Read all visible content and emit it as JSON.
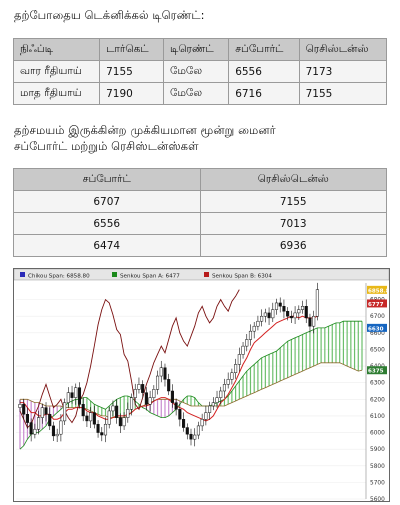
{
  "heading1": "தற்போதைய டெக்னிக்கல் டிரெண்ட்:",
  "table1": {
    "headers": [
      "நிஃப்டி",
      "டார்கெட்",
      "டிரெண்ட்",
      "சப்போர்ட்",
      "ரெசிஸ்டன்ஸ்"
    ],
    "rows": [
      [
        "வார ரீதியாய்",
        "7155",
        "மேலே",
        "6556",
        "7173"
      ],
      [
        "மாத ரீதியாய்",
        "7190",
        "மேலே",
        "6716",
        "7155"
      ]
    ]
  },
  "heading2_line1": "தற்சமயம் இருக்கின்ற முக்கியமான மூன்று மைனர்",
  "heading2_line2": "சப்போர்ட் மற்றும் ரெசிஸ்டன்ஸ்கள்",
  "table2": {
    "headers": [
      "சப்போர்ட்",
      "ரெசிஸ்டென்ஸ்"
    ],
    "rows": [
      [
        "6707",
        "7155"
      ],
      [
        "6556",
        "7013"
      ],
      [
        "6474",
        "6936"
      ]
    ]
  },
  "chart_data": {
    "type": "ichimoku",
    "legend": [
      {
        "name": "Chikou Span",
        "value": "6858.80",
        "color": "#2b2bb8"
      },
      {
        "name": "Senkou Span A",
        "value": "6477",
        "color": "#1c8a1c"
      },
      {
        "name": "Senkou Span B",
        "value": "6304",
        "color": "#b81c1c"
      }
    ],
    "ylim": [
      5600,
      6900
    ],
    "y_ticks": [
      5600,
      5700,
      5800,
      5900,
      6000,
      6100,
      6200,
      6300,
      6400,
      6500,
      6600,
      6700,
      6800
    ],
    "price_labels": [
      {
        "text": "6858.80",
        "value": 6858.8,
        "color": "#e8b818"
      },
      {
        "text": "6777",
        "value": 6777,
        "color": "#c62828"
      },
      {
        "text": "6630",
        "value": 6630,
        "color": "#1565c0"
      },
      {
        "text": "6375",
        "value": 6375,
        "color": "#2e7d32"
      }
    ],
    "close": [
      6170,
      6110,
      6060,
      5990,
      6020,
      6090,
      6150,
      6110,
      6040,
      5980,
      5990,
      6070,
      6180,
      6240,
      6210,
      6270,
      6170,
      6100,
      6070,
      6120,
      6050,
      6000,
      5985,
      6050,
      6130,
      6160,
      6090,
      6040,
      6090,
      6140,
      6210,
      6260,
      6290,
      6240,
      6170,
      6210,
      6260,
      6340,
      6390,
      6320,
      6250,
      6180,
      6140,
      6080,
      6030,
      5990,
      5960,
      5985,
      6040,
      6080,
      6120,
      6160,
      6180,
      6210,
      6250,
      6290,
      6320,
      6360,
      6410,
      6470,
      6520,
      6560,
      6610,
      6640,
      6670,
      6700,
      6720,
      6690,
      6740,
      6780,
      6760,
      6730,
      6700,
      6690,
      6720,
      6740,
      6760,
      6690,
      6640,
      6700,
      6860
    ],
    "kijun": [
      6180,
      6180,
      6150,
      6120,
      6120,
      6100,
      6100,
      6110,
      6110,
      6080,
      6080,
      6090,
      6120,
      6140,
      6140,
      6150,
      6150,
      6150,
      6130,
      6120,
      6120,
      6100,
      6090,
      6080,
      6080,
      6090,
      6100,
      6100,
      6100,
      6110,
      6120,
      6140,
      6150,
      6160,
      6160,
      6170,
      6190,
      6200,
      6210,
      6210,
      6200,
      6180,
      6160,
      6150,
      6140,
      6120,
      6110,
      6100,
      6090,
      6080,
      6070,
      6080,
      6100,
      6140,
      6180,
      6200,
      6230,
      6270,
      6310,
      6360,
      6410,
      6450,
      6500,
      6540,
      6560,
      6580,
      6600,
      6620,
      6640,
      6660,
      6670,
      6680,
      6690,
      6700,
      6700,
      6690,
      6700,
      6690,
      6690,
      6690,
      6700
    ],
    "chikou": [
      6130,
      6080,
      6030,
      6050,
      6110,
      6160,
      6230,
      6290,
      6220,
      6150,
      6170,
      6200,
      6130,
      6090,
      6060,
      6100,
      6190,
      6230,
      6300,
      6400,
      6520,
      6650,
      6740,
      6800,
      6780,
      6710,
      6620,
      6590,
      6470,
      6430,
      6310,
      6170,
      6140,
      6210,
      6290,
      6350,
      6420,
      6470,
      6520,
      6480,
      6560,
      6640,
      6690,
      6600,
      6550,
      6520,
      6580,
      6640,
      6720,
      6760,
      6700,
      6660,
      6690,
      6760,
      6800,
      6760,
      6730,
      6790,
      6820,
      6860
    ],
    "span_a": [
      5900,
      5920,
      5960,
      5990,
      6000,
      6000,
      6020,
      6040,
      6080,
      6100,
      6120,
      6140,
      6160,
      6180,
      6190,
      6200,
      6200,
      6210,
      6210,
      6190,
      6170,
      6160,
      6150,
      6140,
      6160,
      6180,
      6200,
      6210,
      6220,
      6220,
      6210,
      6190,
      6170,
      6150,
      6140,
      6120,
      6110,
      6100,
      6090,
      6090,
      6100,
      6120,
      6140,
      6170,
      6200,
      6220,
      6220,
      6210,
      6180,
      6160,
      6160,
      6160,
      6170,
      6180,
      6190,
      6200,
      6220,
      6250,
      6280,
      6310,
      6340,
      6370,
      6390,
      6410,
      6430,
      6450,
      6460,
      6470,
      6480,
      6490,
      6510,
      6530,
      6550,
      6560,
      6570,
      6580,
      6590,
      6600,
      6610,
      6620,
      6630,
      6630,
      6630,
      6640,
      6650,
      6660,
      6660,
      6670,
      6670,
      6670,
      6670,
      6670,
      6670
    ],
    "span_b": [
      6200,
      6200,
      6200,
      6190,
      6180,
      6180,
      6170,
      6160,
      6160,
      6160,
      6160,
      6160,
      6150,
      6150,
      6150,
      6150,
      6150,
      6150,
      6140,
      6130,
      6120,
      6110,
      6100,
      6100,
      6090,
      6090,
      6090,
      6090,
      6090,
      6100,
      6120,
      6140,
      6150,
      6160,
      6170,
      6180,
      6190,
      6200,
      6200,
      6200,
      6200,
      6200,
      6200,
      6190,
      6180,
      6170,
      6160,
      6160,
      6160,
      6160,
      6160,
      6160,
      6160,
      6160,
      6160,
      6160,
      6170,
      6180,
      6190,
      6200,
      6210,
      6220,
      6230,
      6240,
      6250,
      6260,
      6270,
      6280,
      6290,
      6300,
      6310,
      6320,
      6330,
      6340,
      6350,
      6360,
      6370,
      6380,
      6390,
      6400,
      6410,
      6420,
      6420,
      6420,
      6420,
      6420,
      6420,
      6410,
      6400,
      6390,
      6380,
      6370,
      6375
    ]
  }
}
